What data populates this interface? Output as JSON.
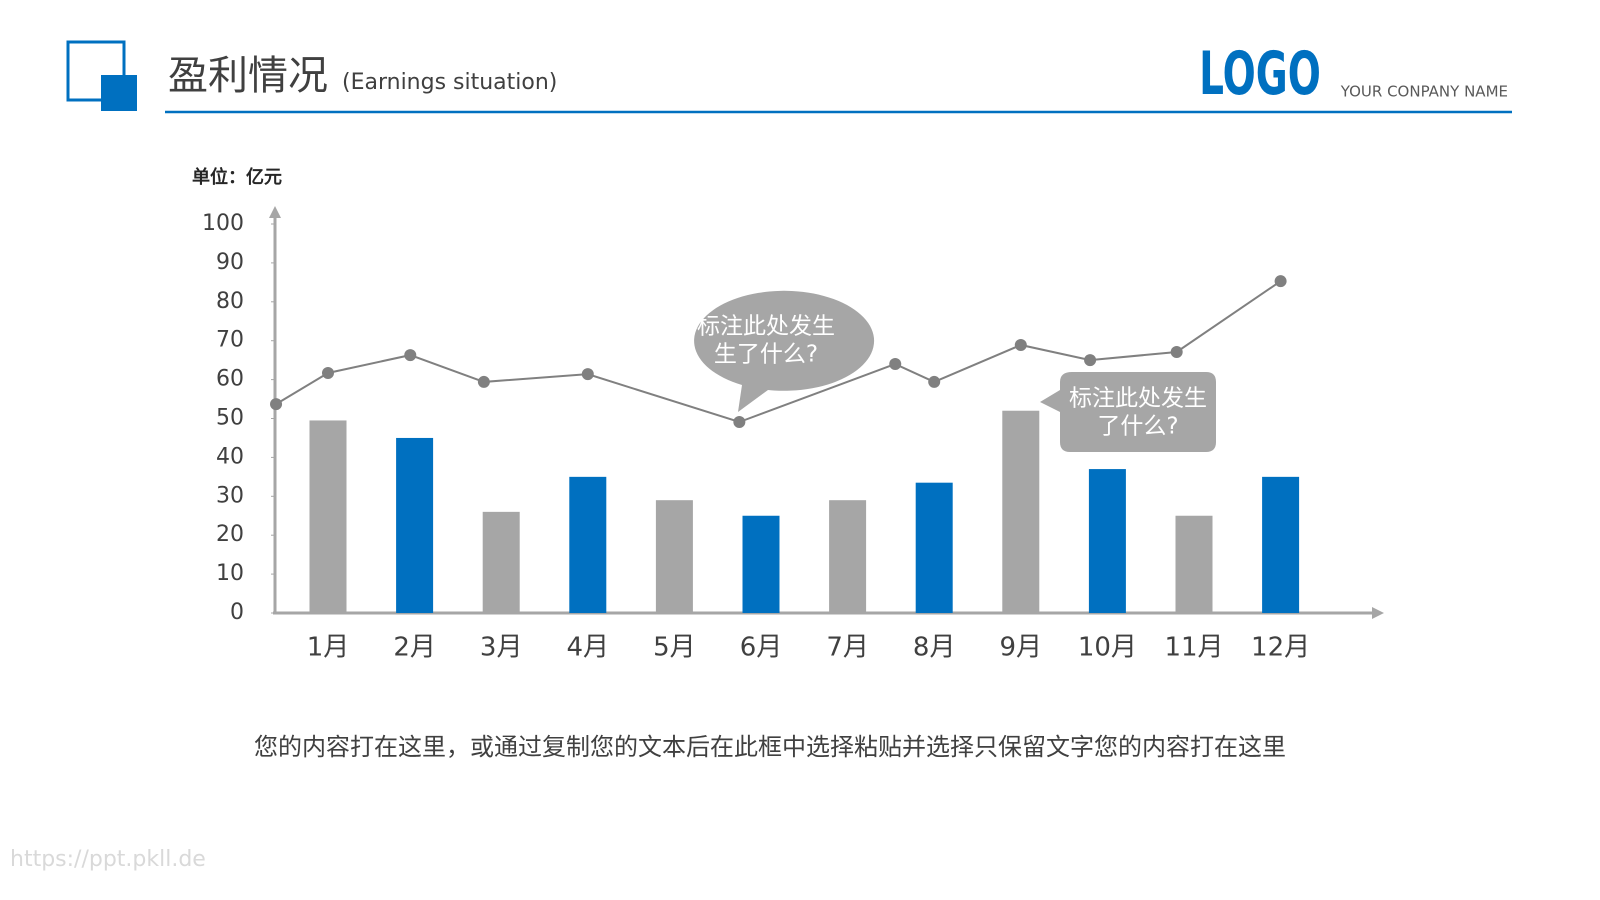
{
  "header": {
    "title": "盈利情况",
    "subtitle": "(Earnings situation)",
    "logo": "LOGO",
    "company": "YOUR CONPANY NAME"
  },
  "chart_data": {
    "type": "bar",
    "y_label": "单位：亿元",
    "categories": [
      "1月",
      "2月",
      "3月",
      "4月",
      "5月",
      "6月",
      "7月",
      "8月",
      "9月",
      "10月",
      "11月",
      "12月"
    ],
    "values": [
      49.5,
      45,
      26,
      35,
      29,
      25,
      29,
      33.5,
      52,
      37,
      25,
      35
    ],
    "colors": [
      "#a6a6a6",
      "#0070c0",
      "#a6a6a6",
      "#0070c0",
      "#a6a6a6",
      "#0070c0",
      "#a6a6a6",
      "#0070c0",
      "#a6a6a6",
      "#0070c0",
      "#a6a6a6",
      "#0070c0"
    ],
    "line": {
      "x": [
        0.4,
        1,
        1.95,
        2.8,
        4,
        5.75,
        7.55,
        8,
        9,
        9.8,
        10.8,
        12
      ],
      "values": [
        53.7,
        61.7,
        66.3,
        59.4,
        61.4,
        49.1,
        64,
        59.4,
        68.9,
        65,
        67.1,
        85.3
      ],
      "color": "#808080"
    },
    "ylim": [
      0,
      100
    ],
    "yticks": [
      0,
      10,
      20,
      30,
      40,
      50,
      60,
      70,
      80,
      90,
      100
    ],
    "annotations": [
      {
        "lines": [
          "标注此处发生",
          "生了什么?"
        ]
      },
      {
        "lines": [
          "标注此处发生",
          "了什么?"
        ]
      }
    ]
  },
  "body_text": "您的内容打在这里，或通过复制您的文本后在此框中选择粘贴并选择只保留文字您的内容打在这里",
  "watermark": "https://ppt.pkll.de"
}
